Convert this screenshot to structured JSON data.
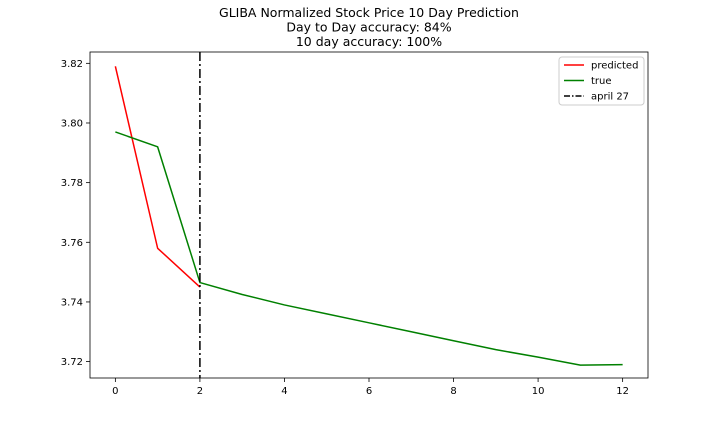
{
  "chart_data": {
    "type": "line",
    "title_lines": [
      "GLIBA Normalized Stock Price 10 Day Prediction",
      "Day to Day accuracy: 84%",
      "10 day accuracy: 100%"
    ],
    "xlabel": "",
    "ylabel": "",
    "xlim": [
      -0.6,
      12.6
    ],
    "ylim": [
      3.7145,
      3.8238
    ],
    "x_ticks": [
      0,
      2,
      4,
      6,
      8,
      10,
      12
    ],
    "y_ticks": [
      3.72,
      3.74,
      3.76,
      3.78,
      3.8,
      3.82
    ],
    "y_tick_labels": [
      "3.72",
      "3.74",
      "3.76",
      "3.78",
      "3.80",
      "3.82"
    ],
    "grid": false,
    "legend_position": "top-right",
    "series": [
      {
        "name": "predicted",
        "color": "#ff0000",
        "x": [
          0,
          1,
          2
        ],
        "y": [
          3.819,
          3.758,
          3.745
        ]
      },
      {
        "name": "true",
        "color": "#008000",
        "x": [
          0,
          1,
          2,
          3,
          4,
          5,
          6,
          7,
          8,
          9,
          10,
          11,
          12
        ],
        "y": [
          3.797,
          3.792,
          3.7465,
          3.7425,
          3.739,
          3.736,
          3.733,
          3.73,
          3.727,
          3.724,
          3.7215,
          3.7188,
          3.719
        ]
      }
    ],
    "vline": {
      "name": "april 27",
      "x": 2,
      "color": "#000000",
      "style": "dash-dot"
    }
  }
}
